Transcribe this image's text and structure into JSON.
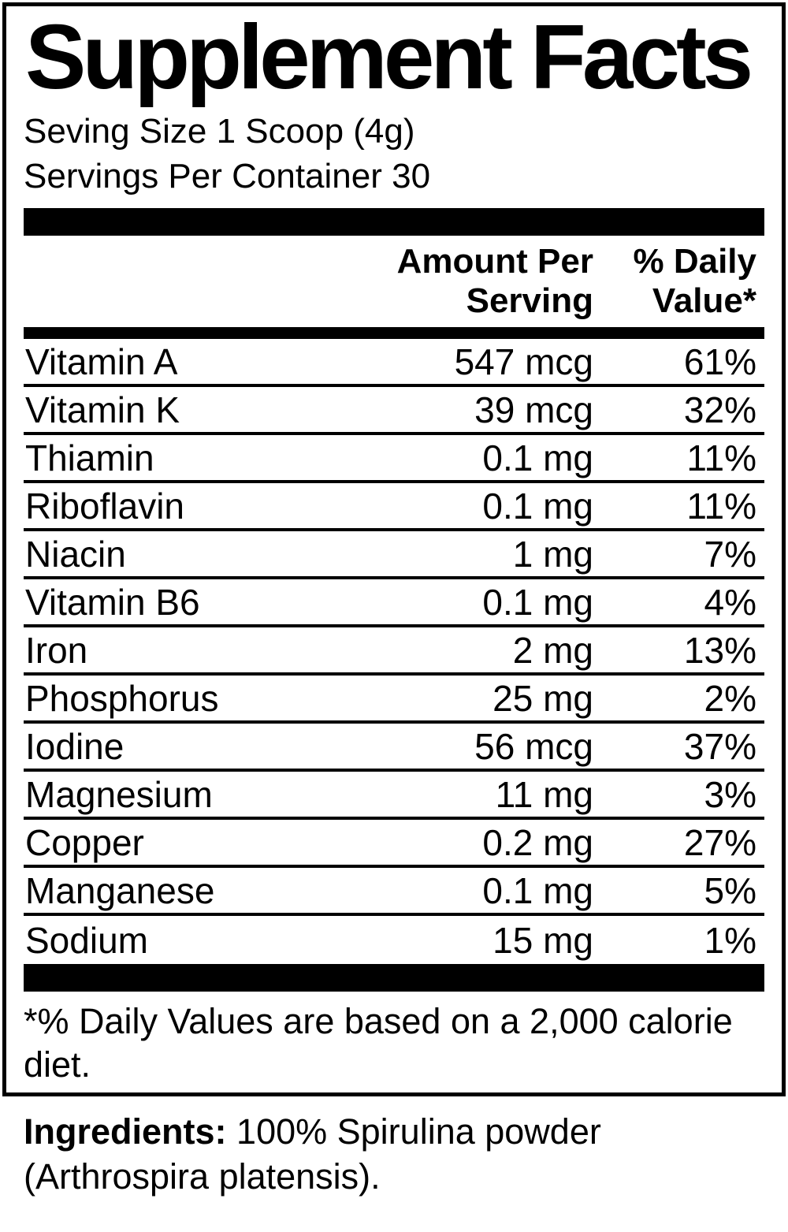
{
  "label": {
    "title": "Supplement Facts",
    "serving_size": "Seving Size 1 Scoop (4g)",
    "servings_per_container": "Servings Per Container 30",
    "header": {
      "amount": [
        "Amount Per",
        "Serving"
      ],
      "dv": [
        "% Daily",
        "Value*"
      ]
    },
    "nutrients": [
      {
        "name": "Vitamin A",
        "amount": "547 mcg",
        "dv": "61%"
      },
      {
        "name": "Vitamin K",
        "amount": "39 mcg",
        "dv": "32%"
      },
      {
        "name": "Thiamin",
        "amount": "0.1 mg",
        "dv": "11%"
      },
      {
        "name": "Riboflavin",
        "amount": "0.1 mg",
        "dv": "11%"
      },
      {
        "name": "Niacin",
        "amount": "1 mg",
        "dv": "7%"
      },
      {
        "name": "Vitamin B6",
        "amount": "0.1 mg",
        "dv": "4%"
      },
      {
        "name": "Iron",
        "amount": "2 mg",
        "dv": "13%"
      },
      {
        "name": "Phosphorus",
        "amount": "25 mg",
        "dv": "2%"
      },
      {
        "name": "Iodine",
        "amount": "56 mcg",
        "dv": "37%"
      },
      {
        "name": "Magnesium",
        "amount": "11 mg",
        "dv": "3%"
      },
      {
        "name": "Copper",
        "amount": "0.2 mg",
        "dv": "27%"
      },
      {
        "name": "Manganese",
        "amount": "0.1 mg",
        "dv": "5%"
      },
      {
        "name": "Sodium",
        "amount": "15 mg",
        "dv": "1%"
      }
    ],
    "footnote": "*% Daily Values are based on a 2,000 calorie diet.",
    "ingredients_label": "Ingredients:",
    "ingredients_text": "100% Spirulina powder (Arthrospira platensis)."
  },
  "colors": {
    "text": "#000000",
    "background": "#ffffff"
  }
}
